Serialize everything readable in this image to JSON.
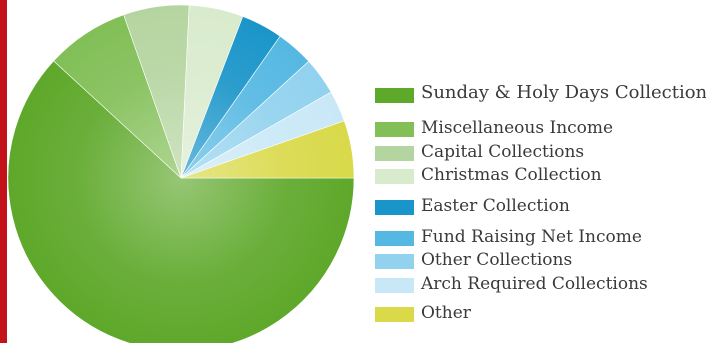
{
  "colors": {
    "left_bar": "#c4121a"
  },
  "chart_data": {
    "type": "pie",
    "title": "",
    "slices": [
      {
        "label": "Sunday & Holy Days Collections",
        "value": 63.5,
        "color": "#5ea82a"
      },
      {
        "label": "Miscellaneous Income",
        "value": 8.0,
        "color": "#82bf57"
      },
      {
        "label": "Capital Collections",
        "value": 6.3,
        "color": "#b5d5a0"
      },
      {
        "label": "Christmas Collection",
        "value": 5.2,
        "color": "#d9ebcd"
      },
      {
        "label": "Easter Collection",
        "value": 4.0,
        "color": "#1a95c9"
      },
      {
        "label": "Fund Raising Net Income",
        "value": 3.6,
        "color": "#55b8e2"
      },
      {
        "label": "Other Collections",
        "value": 3.6,
        "color": "#92d2ee"
      },
      {
        "label": "Arch Required Collections",
        "value": 3.0,
        "color": "#c9e8f7"
      },
      {
        "label": "Other",
        "value": 5.5,
        "color": "#d9d94a"
      }
    ],
    "legend_position": "right"
  }
}
